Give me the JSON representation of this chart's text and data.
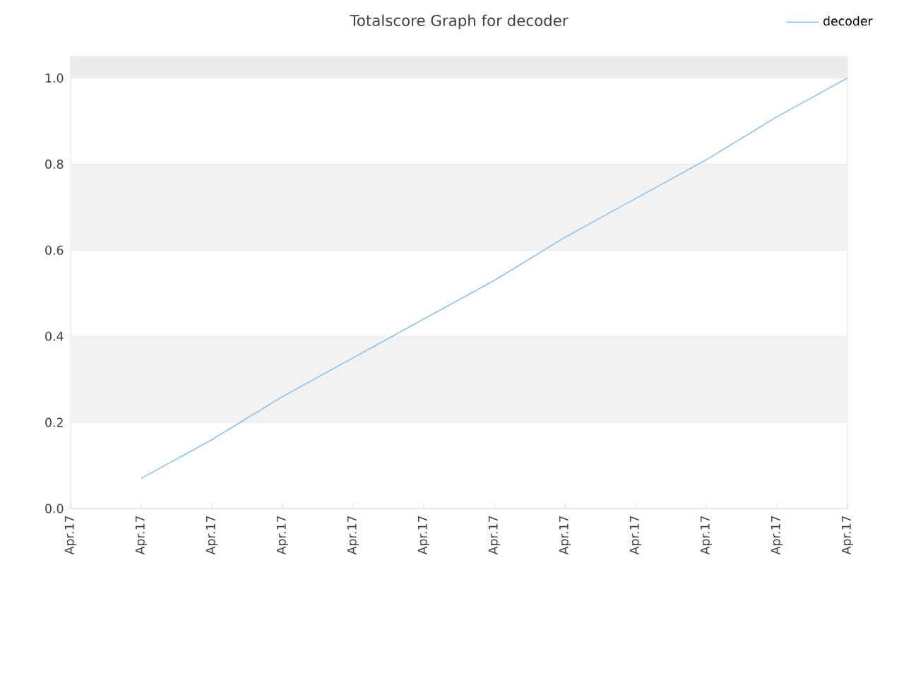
{
  "chart_data": {
    "type": "line",
    "title": "Totalscore Graph for decoder",
    "categories": [
      "Apr.17",
      "Apr.17",
      "Apr.17",
      "Apr.17",
      "Apr.17",
      "Apr.17",
      "Apr.17",
      "Apr.17",
      "Apr.17",
      "Apr.17",
      "Apr.17",
      "Apr.17"
    ],
    "series": [
      {
        "name": "decoder",
        "color": "#90c4f0",
        "values": [
          null,
          0.07,
          0.16,
          0.26,
          0.35,
          0.44,
          0.53,
          0.63,
          0.72,
          0.81,
          0.91,
          1.0
        ]
      }
    ],
    "ylim": [
      0,
      1.05
    ],
    "yticks": [
      {
        "value": 0,
        "label": "0.0"
      },
      0.2,
      0.4,
      0.6,
      0.8,
      {
        "value": 1,
        "label": "1.0"
      }
    ],
    "bands": [
      {
        "axis": "y",
        "from": 0.2,
        "to": 0.4,
        "color": "#f2f2f2"
      },
      {
        "axis": "y",
        "from": 0.6,
        "to": 0.8,
        "color": "#f2f2f2"
      },
      {
        "axis": "y",
        "from": 1.0,
        "to": 1.05,
        "color": "#ececec"
      }
    ],
    "grid": "y",
    "legend": "top right",
    "marker": "none",
    "line_style": "solid"
  }
}
